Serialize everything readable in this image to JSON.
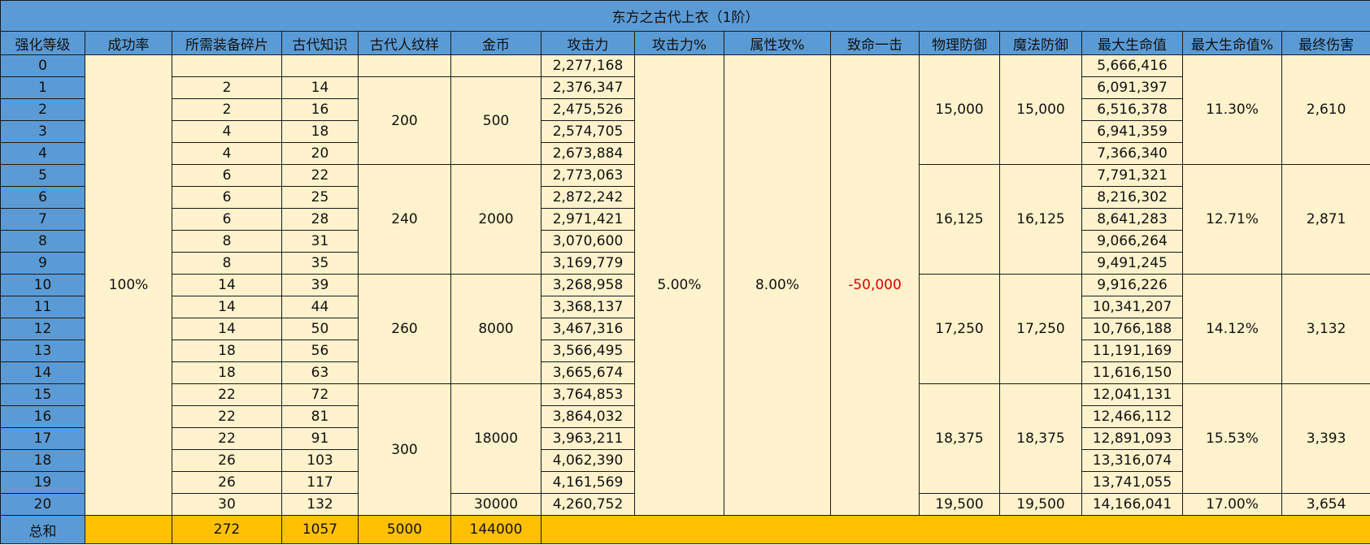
{
  "title": "东方之古代上衣（1阶）",
  "columns": [
    "强化等级",
    "成功率",
    "所需装备碎片",
    "古代知识",
    "古代人纹样",
    "金币",
    "攻击力",
    "攻击力%",
    "属性攻%",
    "致命一击",
    "物理防御",
    "魔法防御",
    "最大生命值",
    "最大生命值%",
    "最终伤害"
  ],
  "levels": [
    "0",
    "1",
    "2",
    "3",
    "4",
    "5",
    "6",
    "7",
    "8",
    "9",
    "10",
    "11",
    "12",
    "13",
    "14",
    "15",
    "16",
    "17",
    "18",
    "19",
    "20"
  ],
  "success_rate": "100%",
  "fragments": [
    "",
    "2",
    "2",
    "4",
    "4",
    "6",
    "6",
    "6",
    "8",
    "8",
    "14",
    "14",
    "14",
    "18",
    "18",
    "22",
    "22",
    "22",
    "26",
    "26",
    "30"
  ],
  "knowledge": [
    "",
    "14",
    "16",
    "18",
    "20",
    "22",
    "25",
    "28",
    "31",
    "35",
    "39",
    "44",
    "50",
    "56",
    "63",
    "72",
    "81",
    "91",
    "103",
    "117",
    "132"
  ],
  "pattern_groups": [
    "200",
    "240",
    "260",
    "300"
  ],
  "gold_groups": [
    "500",
    "2000",
    "8000",
    "18000",
    "30000"
  ],
  "attack": [
    "2,277,168",
    "2,376,347",
    "2,475,526",
    "2,574,705",
    "2,673,884",
    "2,773,063",
    "2,872,242",
    "2,971,421",
    "3,070,600",
    "3,169,779",
    "3,268,958",
    "3,368,137",
    "3,467,316",
    "3,566,495",
    "3,665,674",
    "3,764,853",
    "3,864,032",
    "3,963,211",
    "4,062,390",
    "4,161,569",
    "4,260,752"
  ],
  "attack_pct": "5.00%",
  "element_pct": "8.00%",
  "critical": "-50,000",
  "phys_def_groups": [
    "15,000",
    "16,125",
    "17,250",
    "18,375",
    "19,500"
  ],
  "mag_def_groups": [
    "15,000",
    "16,125",
    "17,250",
    "18,375",
    "19,500"
  ],
  "max_hp": [
    "5,666,416",
    "6,091,397",
    "6,516,378",
    "6,941,359",
    "7,366,340",
    "7,791,321",
    "8,216,302",
    "8,641,283",
    "9,066,264",
    "9,491,245",
    "9,916,226",
    "10,341,207",
    "10,766,188",
    "11,191,169",
    "11,616,150",
    "12,041,131",
    "12,466,112",
    "12,891,093",
    "13,316,074",
    "13,741,055",
    "14,166,041"
  ],
  "max_hp_pct_groups": [
    "11.30%",
    "12.71%",
    "14.12%",
    "15.53%",
    "17.00%"
  ],
  "final_dmg_groups": [
    "2,610",
    "2,871",
    "3,132",
    "3,393",
    "3,654"
  ],
  "colors": {
    "header_blue": "#5b9bd5",
    "cell_yellow": "#fff2cc",
    "total_orange": "#ffc000",
    "negative_red": "#e00000"
  },
  "totals": {
    "label": "总和",
    "fragments": "272",
    "knowledge": "1057",
    "pattern": "5000",
    "gold": "144000"
  }
}
